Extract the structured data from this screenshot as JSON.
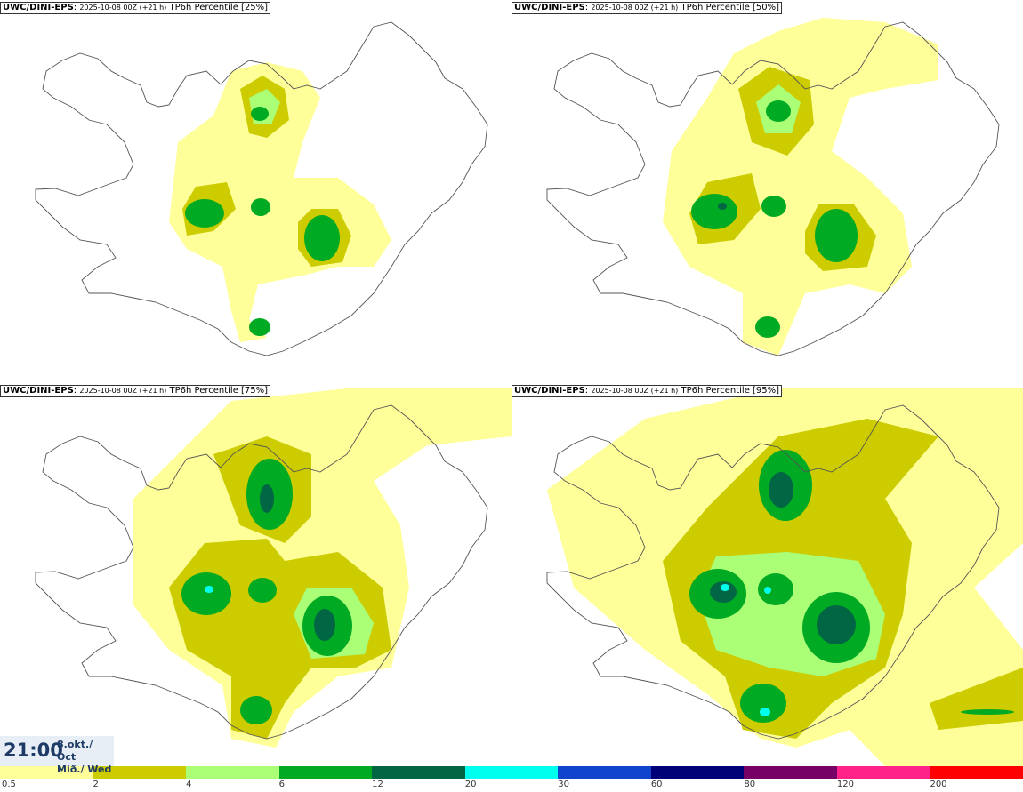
{
  "panels": [
    {
      "model": "UWC/DINI-EPS",
      "run": "2025-10-08 00Z (+21 h)",
      "field": "TP6h Percentile [25%]"
    },
    {
      "model": "UWC/DINI-EPS",
      "run": "2025-10-08 00Z (+21 h)",
      "field": "TP6h Percentile [50%]"
    },
    {
      "model": "UWC/DINI-EPS",
      "run": "2025-10-08 00Z (+21 h)",
      "field": "TP6h Percentile [75%]"
    },
    {
      "model": "UWC/DINI-EPS",
      "run": "2025-10-08 00Z (+21 h)",
      "field": "TP6h Percentile [95%]"
    }
  ],
  "valid_time": {
    "time": "21:00",
    "date": "8.okt./ Oct",
    "day": "Mið./ Wed"
  },
  "colorbar": {
    "colors": [
      "#ffff99",
      "#cccc00",
      "#aaff77",
      "#00aa22",
      "#006644",
      "#00ffee",
      "#1144cc",
      "#000077",
      "#770066",
      "#ff2288",
      "#ff0000"
    ],
    "labels": [
      "0.5",
      "2",
      "4",
      "6",
      "12",
      "20",
      "30",
      "60",
      "80",
      "120",
      "200"
    ]
  },
  "legend_colors": {
    "light": "#ffff99",
    "olive": "#cccc00",
    "lightgreen": "#aaff77",
    "green": "#00aa22",
    "darkgreen": "#006644",
    "cyan": "#00ffee"
  }
}
